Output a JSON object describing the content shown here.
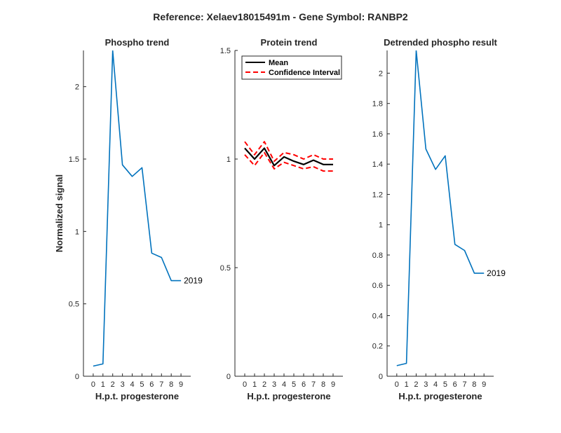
{
  "figure": {
    "suptitle": "Reference:  Xelaev18015491m - Gene Symbol:  RANBP2"
  },
  "chart_data": [
    {
      "type": "line",
      "title": "Phospho trend",
      "xlabel": "H.p.t. progesterone",
      "ylabel": "Normalized signal",
      "xlim": [
        -1,
        10
      ],
      "ylim": [
        0,
        2.25
      ],
      "xticks": [
        0,
        1,
        2,
        3,
        4,
        5,
        6,
        7,
        8,
        9
      ],
      "xtick_labels": [
        "0",
        "1",
        "2",
        "3",
        "4",
        "5",
        "6",
        "7",
        "8",
        "9"
      ],
      "yticks": [
        0,
        0.5,
        1,
        1.5,
        2
      ],
      "ytick_labels": [
        "0",
        "0.5",
        "1",
        "1.5",
        "2"
      ],
      "series": [
        {
          "name": "",
          "color": "#0072BD",
          "dashed": false,
          "x": [
            0,
            1,
            2,
            3,
            4,
            5,
            6,
            7,
            8,
            9
          ],
          "y": [
            0.07,
            0.085,
            2.25,
            1.46,
            1.38,
            1.44,
            0.85,
            0.82,
            0.66,
            0.66
          ]
        }
      ],
      "annotation": {
        "text": "2019",
        "x": 9,
        "y": 0.66
      }
    },
    {
      "type": "line",
      "title": "Protein trend",
      "xlabel": "H.p.t. progesterone",
      "ylabel": "",
      "xlim": [
        -1,
        10
      ],
      "ylim": [
        0,
        1.5
      ],
      "xticks": [
        0,
        1,
        2,
        3,
        4,
        5,
        6,
        7,
        8,
        9
      ],
      "xtick_labels": [
        "0",
        "1",
        "2",
        "3",
        "4",
        "5",
        "6",
        "7",
        "8",
        "9"
      ],
      "yticks": [
        0,
        0.5,
        1,
        1.5
      ],
      "ytick_labels": [
        "0",
        "0.5",
        "1",
        "1.5"
      ],
      "legend": {
        "position": "top-right",
        "entries": [
          {
            "label": "Mean",
            "color": "#000000",
            "dashed": false
          },
          {
            "label": "Confidence Interval",
            "color": "#FF0000",
            "dashed": true
          }
        ]
      },
      "series": [
        {
          "name": "Mean",
          "color": "#000000",
          "dashed": false,
          "x": [
            0,
            1,
            2,
            3,
            4,
            5,
            6,
            7,
            8,
            9
          ],
          "y": [
            1.05,
            1.0,
            1.05,
            0.97,
            1.01,
            0.99,
            0.975,
            0.995,
            0.975,
            0.975
          ]
        },
        {
          "name": "Confidence Interval",
          "color": "#FF0000",
          "dashed": true,
          "x": [
            0,
            1,
            2,
            3,
            4,
            5,
            6,
            7,
            8,
            9
          ],
          "y": [
            1.08,
            1.02,
            1.08,
            0.99,
            1.03,
            1.02,
            1.0,
            1.02,
            1.0,
            1.0
          ]
        },
        {
          "name": "",
          "color": "#FF0000",
          "dashed": true,
          "x": [
            0,
            1,
            2,
            3,
            4,
            5,
            6,
            7,
            8,
            9
          ],
          "y": [
            1.02,
            0.97,
            1.03,
            0.955,
            0.985,
            0.97,
            0.955,
            0.965,
            0.945,
            0.945
          ]
        }
      ]
    },
    {
      "type": "line",
      "title": "Detrended phospho result",
      "xlabel": "H.p.t. progesterone",
      "ylabel": "",
      "xlim": [
        -1,
        10
      ],
      "ylim": [
        0,
        2.15
      ],
      "xticks": [
        0,
        1,
        2,
        3,
        4,
        5,
        6,
        7,
        8,
        9
      ],
      "xtick_labels": [
        "0",
        "1",
        "2",
        "3",
        "4",
        "5",
        "6",
        "7",
        "8",
        "9"
      ],
      "yticks": [
        0,
        0.2,
        0.4,
        0.6,
        0.8,
        1,
        1.2,
        1.4,
        1.6,
        1.8,
        2
      ],
      "ytick_labels": [
        "0",
        "0.2",
        "0.4",
        "0.6",
        "0.8",
        "1",
        "1.2",
        "1.4",
        "1.6",
        "1.8",
        "2"
      ],
      "series": [
        {
          "name": "",
          "color": "#0072BD",
          "dashed": false,
          "x": [
            0,
            1,
            2,
            3,
            4,
            5,
            6,
            7,
            8,
            9
          ],
          "y": [
            0.07,
            0.085,
            2.15,
            1.5,
            1.365,
            1.455,
            0.87,
            0.83,
            0.68,
            0.68
          ]
        }
      ],
      "annotation": {
        "text": "2019",
        "x": 9,
        "y": 0.68
      }
    }
  ]
}
